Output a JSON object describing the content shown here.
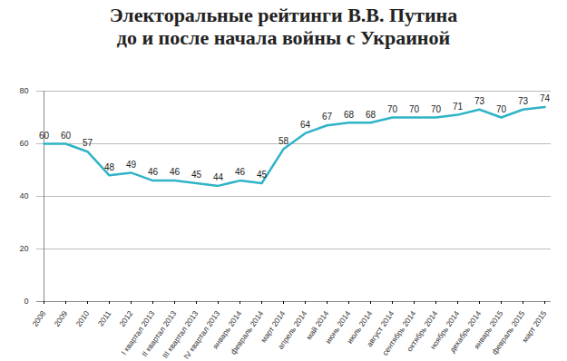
{
  "chart_data": {
    "type": "line",
    "title": [
      "Электоральные рейтинги В.В. Путина",
      "до и после начала войны с Украиной"
    ],
    "categories": [
      "2008",
      "2009",
      "2010",
      "2011",
      "2012",
      "I квартал 2013",
      "II квартал 2013",
      "III квартал 2013",
      "IV квартал 2013",
      "январь 2014",
      "февраль 2014",
      "март 2014",
      "апрель 2014",
      "май 2014",
      "июнь 2014",
      "июль 2014",
      "август 2014",
      "сентябрь 2014",
      "октябрь 2014",
      "ноябрь 2014",
      "декабрь 2014",
      "январь 2015",
      "февраль 2015",
      "март 2015"
    ],
    "values": [
      60,
      60,
      57,
      48,
      49,
      46,
      46,
      45,
      44,
      46,
      45,
      58,
      64,
      67,
      68,
      68,
      70,
      70,
      70,
      71,
      73,
      70,
      73,
      74
    ],
    "color": "#2fb3c6",
    "ylim": [
      0,
      80
    ],
    "yticks": [
      0,
      20,
      40,
      60,
      80
    ],
    "grid": true,
    "data_labels": true
  }
}
